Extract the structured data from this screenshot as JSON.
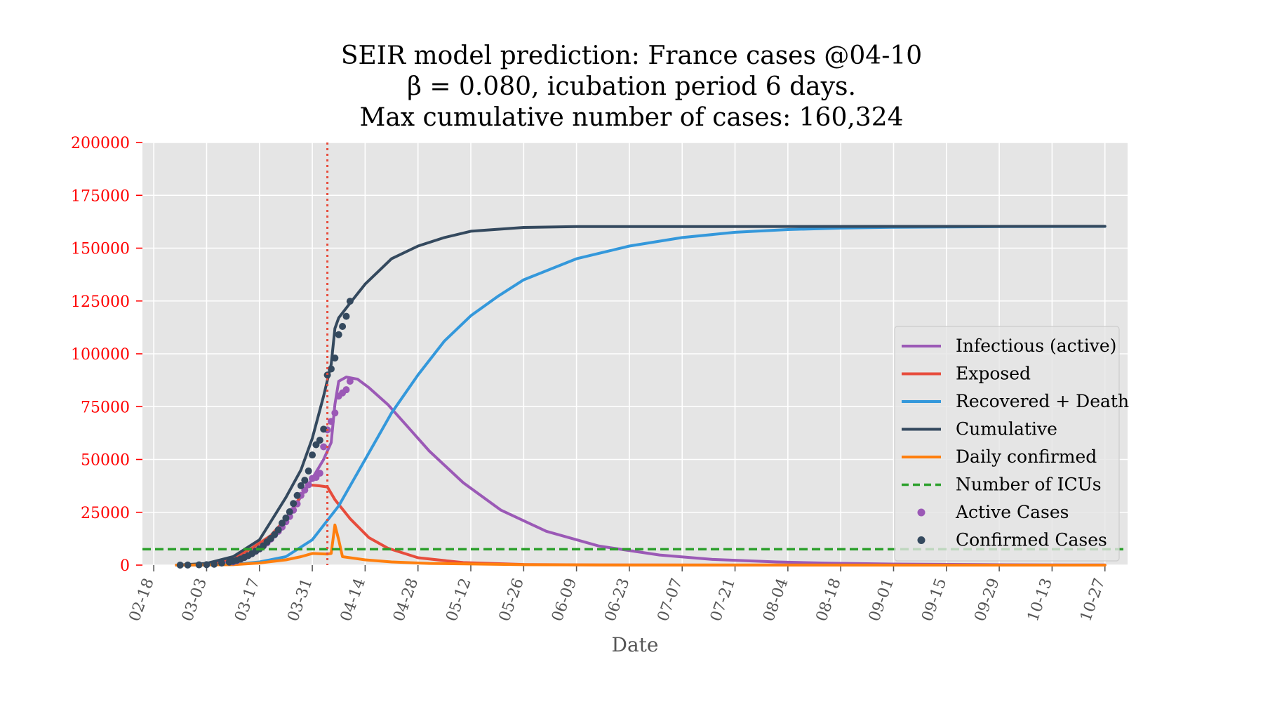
{
  "chart_data": {
    "type": "line",
    "title": [
      "SEIR model prediction: France cases @04-10",
      "β = 0.080, icubation period 6 days.",
      "Max cumulative number of cases: 160,324"
    ],
    "xlabel": "Date",
    "ylabel": "",
    "x_range": [
      "2020-02-15",
      "2020-11-02"
    ],
    "ylim": [
      0,
      200000
    ],
    "yticks": [
      0,
      25000,
      50000,
      75000,
      100000,
      125000,
      150000,
      175000,
      200000
    ],
    "xtick_labels": [
      "02-18",
      "03-03",
      "03-17",
      "03-31",
      "04-14",
      "04-28",
      "05-12",
      "05-26",
      "06-09",
      "06-23",
      "07-07",
      "07-21",
      "08-04",
      "08-18",
      "09-01",
      "09-15",
      "09-29",
      "10-13",
      "10-27"
    ],
    "xtick_dates": [
      "2020-02-18",
      "2020-03-03",
      "2020-03-17",
      "2020-03-31",
      "2020-04-14",
      "2020-04-28",
      "2020-05-12",
      "2020-05-26",
      "2020-06-09",
      "2020-06-23",
      "2020-07-07",
      "2020-07-21",
      "2020-08-04",
      "2020-08-18",
      "2020-09-01",
      "2020-09-15",
      "2020-09-29",
      "2020-10-13",
      "2020-10-27"
    ],
    "grid": true,
    "legend_position": "center-right",
    "vline": {
      "date": "2020-04-04",
      "color": "#e74c3c",
      "style": "dotted"
    },
    "hline": {
      "name": "Number of ICUs",
      "value": 7500,
      "color": "#2ca02c",
      "style": "dashed"
    },
    "series": [
      {
        "name": "Infectious (active)",
        "color": "#9b59b6",
        "kind": "line",
        "points": [
          [
            "2020-02-24",
            0
          ],
          [
            "2020-03-03",
            200
          ],
          [
            "2020-03-10",
            1500
          ],
          [
            "2020-03-15",
            4500
          ],
          [
            "2020-03-20",
            12000
          ],
          [
            "2020-03-25",
            24000
          ],
          [
            "2020-03-30",
            38000
          ],
          [
            "2020-04-01",
            44000
          ],
          [
            "2020-04-03",
            50000
          ],
          [
            "2020-04-05",
            58000
          ],
          [
            "2020-04-06",
            76000
          ],
          [
            "2020-04-07",
            87000
          ],
          [
            "2020-04-09",
            89000
          ],
          [
            "2020-04-12",
            88000
          ],
          [
            "2020-04-15",
            84000
          ],
          [
            "2020-04-20",
            76000
          ],
          [
            "2020-04-25",
            66000
          ],
          [
            "2020-05-01",
            54000
          ],
          [
            "2020-05-10",
            39000
          ],
          [
            "2020-05-20",
            26000
          ],
          [
            "2020-06-01",
            16000
          ],
          [
            "2020-06-15",
            9000
          ],
          [
            "2020-07-01",
            4800
          ],
          [
            "2020-07-15",
            2700
          ],
          [
            "2020-08-01",
            1500
          ],
          [
            "2020-08-15",
            900
          ],
          [
            "2020-09-01",
            500
          ],
          [
            "2020-10-01",
            150
          ],
          [
            "2020-10-27",
            50
          ]
        ]
      },
      {
        "name": "Exposed",
        "color": "#e74c3c",
        "kind": "line",
        "points": [
          [
            "2020-02-24",
            0
          ],
          [
            "2020-03-03",
            500
          ],
          [
            "2020-03-10",
            3000
          ],
          [
            "2020-03-15",
            8000
          ],
          [
            "2020-03-20",
            14000
          ],
          [
            "2020-03-25",
            24000
          ],
          [
            "2020-03-28",
            33000
          ],
          [
            "2020-03-30",
            38000
          ],
          [
            "2020-04-02",
            37500
          ],
          [
            "2020-04-04",
            37000
          ],
          [
            "2020-04-06",
            31000
          ],
          [
            "2020-04-10",
            22000
          ],
          [
            "2020-04-15",
            13000
          ],
          [
            "2020-04-20",
            8000
          ],
          [
            "2020-04-28",
            3500
          ],
          [
            "2020-05-10",
            1200
          ],
          [
            "2020-05-26",
            300
          ],
          [
            "2020-06-15",
            50
          ],
          [
            "2020-10-27",
            0
          ]
        ]
      },
      {
        "name": "Recovered + Death",
        "color": "#3498db",
        "kind": "line",
        "points": [
          [
            "2020-02-24",
            0
          ],
          [
            "2020-03-10",
            300
          ],
          [
            "2020-03-17",
            1500
          ],
          [
            "2020-03-24",
            4000
          ],
          [
            "2020-03-31",
            12000
          ],
          [
            "2020-04-07",
            28000
          ],
          [
            "2020-04-14",
            50000
          ],
          [
            "2020-04-21",
            72000
          ],
          [
            "2020-04-28",
            90000
          ],
          [
            "2020-05-05",
            106000
          ],
          [
            "2020-05-12",
            118000
          ],
          [
            "2020-05-19",
            127000
          ],
          [
            "2020-05-26",
            135000
          ],
          [
            "2020-06-09",
            145000
          ],
          [
            "2020-06-23",
            151000
          ],
          [
            "2020-07-07",
            155000
          ],
          [
            "2020-07-21",
            157500
          ],
          [
            "2020-08-04",
            158800
          ],
          [
            "2020-08-18",
            159500
          ],
          [
            "2020-09-01",
            159900
          ],
          [
            "2020-10-01",
            160200
          ],
          [
            "2020-10-27",
            160300
          ]
        ]
      },
      {
        "name": "Cumulative",
        "color": "#34495e",
        "kind": "line",
        "points": [
          [
            "2020-02-24",
            0
          ],
          [
            "2020-03-03",
            800
          ],
          [
            "2020-03-10",
            4000
          ],
          [
            "2020-03-17",
            12000
          ],
          [
            "2020-03-24",
            32000
          ],
          [
            "2020-03-28",
            45000
          ],
          [
            "2020-03-31",
            60000
          ],
          [
            "2020-04-03",
            80000
          ],
          [
            "2020-04-05",
            95000
          ],
          [
            "2020-04-06",
            112000
          ],
          [
            "2020-04-07",
            117000
          ],
          [
            "2020-04-10",
            124000
          ],
          [
            "2020-04-14",
            133000
          ],
          [
            "2020-04-21",
            145000
          ],
          [
            "2020-04-28",
            151000
          ],
          [
            "2020-05-05",
            155000
          ],
          [
            "2020-05-12",
            158000
          ],
          [
            "2020-05-26",
            159800
          ],
          [
            "2020-06-09",
            160200
          ],
          [
            "2020-10-27",
            160324
          ]
        ]
      },
      {
        "name": "Daily confirmed",
        "color": "#ff7f0e",
        "kind": "line",
        "points": [
          [
            "2020-02-24",
            0
          ],
          [
            "2020-03-10",
            200
          ],
          [
            "2020-03-17",
            1000
          ],
          [
            "2020-03-24",
            2500
          ],
          [
            "2020-03-28",
            4000
          ],
          [
            "2020-03-31",
            5500
          ],
          [
            "2020-04-04",
            5200
          ],
          [
            "2020-04-05",
            5500
          ],
          [
            "2020-04-06",
            19000
          ],
          [
            "2020-04-07",
            12000
          ],
          [
            "2020-04-08",
            4000
          ],
          [
            "2020-04-14",
            2500
          ],
          [
            "2020-04-21",
            1500
          ],
          [
            "2020-05-01",
            800
          ],
          [
            "2020-05-26",
            200
          ],
          [
            "2020-06-23",
            30
          ],
          [
            "2020-10-27",
            0
          ]
        ]
      },
      {
        "name": "Active Cases",
        "color": "#9b59b6",
        "kind": "scatter",
        "points": [
          [
            "2020-03-10",
            1500
          ],
          [
            "2020-03-11",
            2000
          ],
          [
            "2020-03-12",
            2800
          ],
          [
            "2020-03-13",
            3600
          ],
          [
            "2020-03-14",
            4500
          ],
          [
            "2020-03-15",
            5400
          ],
          [
            "2020-03-16",
            6500
          ],
          [
            "2020-03-17",
            7600
          ],
          [
            "2020-03-18",
            9000
          ],
          [
            "2020-03-19",
            10500
          ],
          [
            "2020-03-20",
            12300
          ],
          [
            "2020-03-21",
            14300
          ],
          [
            "2020-03-22",
            16000
          ],
          [
            "2020-03-23",
            18000
          ],
          [
            "2020-03-24",
            20500
          ],
          [
            "2020-03-25",
            23000
          ],
          [
            "2020-03-26",
            26000
          ],
          [
            "2020-03-27",
            29000
          ],
          [
            "2020-03-28",
            33000
          ],
          [
            "2020-03-29",
            35500
          ],
          [
            "2020-03-30",
            38000
          ],
          [
            "2020-03-31",
            41000
          ],
          [
            "2020-04-01",
            41500
          ],
          [
            "2020-04-02",
            43500
          ],
          [
            "2020-04-03",
            56000
          ],
          [
            "2020-04-04",
            64000
          ],
          [
            "2020-04-05",
            68000
          ],
          [
            "2020-04-06",
            72000
          ],
          [
            "2020-04-07",
            80000
          ],
          [
            "2020-04-08",
            81500
          ],
          [
            "2020-04-09",
            83000
          ],
          [
            "2020-04-10",
            87000
          ]
        ]
      },
      {
        "name": "Confirmed Cases",
        "color": "#34495e",
        "kind": "scatter",
        "points": [
          [
            "2020-02-25",
            14
          ],
          [
            "2020-02-27",
            40
          ],
          [
            "2020-03-01",
            130
          ],
          [
            "2020-03-03",
            212
          ],
          [
            "2020-03-05",
            423
          ],
          [
            "2020-03-07",
            949
          ],
          [
            "2020-03-09",
            1412
          ],
          [
            "2020-03-10",
            1784
          ],
          [
            "2020-03-11",
            2281
          ],
          [
            "2020-03-12",
            2876
          ],
          [
            "2020-03-13",
            3661
          ],
          [
            "2020-03-14",
            4499
          ],
          [
            "2020-03-15",
            5423
          ],
          [
            "2020-03-16",
            6633
          ],
          [
            "2020-03-17",
            7730
          ],
          [
            "2020-03-18",
            9134
          ],
          [
            "2020-03-19",
            10995
          ],
          [
            "2020-03-20",
            12612
          ],
          [
            "2020-03-21",
            14459
          ],
          [
            "2020-03-22",
            16689
          ],
          [
            "2020-03-23",
            19856
          ],
          [
            "2020-03-24",
            22304
          ],
          [
            "2020-03-25",
            25233
          ],
          [
            "2020-03-26",
            29155
          ],
          [
            "2020-03-27",
            32964
          ],
          [
            "2020-03-28",
            37575
          ],
          [
            "2020-03-29",
            40174
          ],
          [
            "2020-03-30",
            44550
          ],
          [
            "2020-03-31",
            52128
          ],
          [
            "2020-04-01",
            56989
          ],
          [
            "2020-04-02",
            59105
          ],
          [
            "2020-04-03",
            64338
          ],
          [
            "2020-04-04",
            89953
          ],
          [
            "2020-04-05",
            92839
          ],
          [
            "2020-04-06",
            98010
          ],
          [
            "2020-04-07",
            109069
          ],
          [
            "2020-04-08",
            112950
          ],
          [
            "2020-04-09",
            117749
          ],
          [
            "2020-04-10",
            124869
          ]
        ]
      }
    ]
  }
}
